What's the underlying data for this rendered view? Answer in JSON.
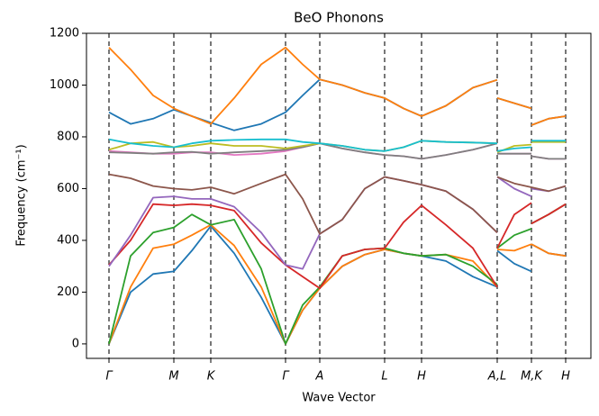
{
  "chart_data": {
    "type": "line",
    "title": "BeO Phonons",
    "x_label": "Wave Vector",
    "y_label": "Frequency (cm⁻¹)",
    "x": [
      0,
      0.24,
      0.49,
      0.72,
      0.92,
      1.13,
      1.39,
      1.69,
      1.96,
      2.15,
      2.34,
      2.59,
      2.84,
      3.06,
      3.27,
      3.47,
      3.74,
      4.04,
      4.31,
      4.31,
      4.31,
      4.5,
      4.69,
      4.69,
      4.69,
      4.88,
      5.07
    ],
    "xlim": [
      -0.25,
      5.35
    ],
    "ylim": [
      -56,
      1200
    ],
    "xticks": [
      {
        "value": 0,
        "label": "Γ"
      },
      {
        "value": 0.72,
        "label": "M"
      },
      {
        "value": 1.13,
        "label": "K"
      },
      {
        "value": 1.96,
        "label": "Γ"
      },
      {
        "value": 2.34,
        "label": "A"
      },
      {
        "value": 3.06,
        "label": "L"
      },
      {
        "value": 3.47,
        "label": "H"
      },
      {
        "value": 4.31,
        "label": "A,L"
      },
      {
        "value": 4.69,
        "label": "M,K"
      },
      {
        "value": 5.07,
        "label": "H"
      }
    ],
    "yticks": [
      0,
      200,
      400,
      600,
      800,
      1000,
      1200
    ],
    "xtick_lines": true,
    "series": [
      {
        "color": "#1f77b4",
        "values": [
          0,
          200,
          270,
          280,
          360,
          455,
          350,
          180,
          0,
          130,
          215,
          300,
          345,
          365,
          350,
          340,
          320,
          260,
          220,
          null,
          360,
          310,
          280,
          null,
          385,
          350,
          340
        ]
      },
      {
        "color": "#ff7f0e",
        "values": [
          0,
          220,
          370,
          385,
          420,
          460,
          380,
          220,
          0,
          130,
          215,
          300,
          345,
          365,
          350,
          340,
          345,
          320,
          220,
          null,
          365,
          360,
          385,
          null,
          385,
          350,
          340
        ]
      },
      {
        "color": "#2ca02c",
        "values": [
          0,
          340,
          430,
          450,
          500,
          460,
          480,
          290,
          0,
          150,
          220,
          340,
          365,
          370,
          350,
          340,
          345,
          300,
          230,
          null,
          370,
          420,
          445,
          null,
          465,
          500,
          540
        ]
      },
      {
        "color": "#d62728",
        "values": [
          305,
          400,
          540,
          535,
          540,
          535,
          515,
          390,
          305,
          260,
          215,
          340,
          365,
          370,
          470,
          535,
          460,
          370,
          220,
          null,
          370,
          500,
          545,
          null,
          465,
          500,
          540
        ]
      },
      {
        "color": "#9467bd",
        "values": [
          300,
          420,
          565,
          570,
          560,
          560,
          530,
          430,
          305,
          290,
          425,
          480,
          600,
          645,
          630,
          615,
          590,
          520,
          430,
          null,
          645,
          600,
          570,
          null,
          600,
          590,
          610
        ]
      },
      {
        "color": "#8c564b",
        "values": [
          655,
          640,
          610,
          600,
          595,
          605,
          580,
          620,
          655,
          560,
          425,
          480,
          600,
          645,
          630,
          615,
          590,
          520,
          430,
          null,
          645,
          620,
          605,
          null,
          605,
          590,
          610
        ]
      },
      {
        "color": "#e377c2",
        "values": [
          745,
          740,
          735,
          735,
          740,
          740,
          730,
          735,
          745,
          760,
          775,
          755,
          740,
          730,
          725,
          715,
          730,
          750,
          775,
          null,
          735,
          735,
          735,
          null,
          725,
          715,
          715
        ]
      },
      {
        "color": "#7f7f7f",
        "values": [
          740,
          738,
          735,
          740,
          742,
          735,
          740,
          745,
          750,
          760,
          775,
          755,
          740,
          730,
          725,
          715,
          730,
          750,
          775,
          null,
          735,
          735,
          735,
          null,
          725,
          715,
          715
        ]
      },
      {
        "color": "#bcbd22",
        "values": [
          750,
          775,
          780,
          760,
          765,
          775,
          765,
          765,
          755,
          765,
          775,
          765,
          750,
          745,
          760,
          785,
          780,
          778,
          775,
          null,
          740,
          765,
          770,
          null,
          780,
          780,
          780
        ]
      },
      {
        "color": "#17becf",
        "values": [
          790,
          775,
          765,
          760,
          775,
          785,
          788,
          790,
          790,
          780,
          775,
          765,
          750,
          745,
          760,
          785,
          780,
          778,
          775,
          null,
          745,
          755,
          760,
          null,
          785,
          785,
          785
        ]
      },
      {
        "color": "#1f77b4",
        "values": [
          895,
          850,
          870,
          905,
          880,
          855,
          825,
          850,
          895,
          960,
          1022,
          1000,
          970,
          950,
          910,
          880,
          920,
          990,
          1020,
          null,
          950,
          930,
          910,
          null,
          845,
          870,
          880
        ]
      },
      {
        "color": "#ff7f0e",
        "values": [
          1145,
          1060,
          960,
          910,
          880,
          850,
          950,
          1080,
          1145,
          1080,
          1022,
          1000,
          970,
          950,
          910,
          880,
          920,
          990,
          1020,
          null,
          950,
          930,
          910,
          null,
          845,
          870,
          880
        ]
      }
    ]
  }
}
